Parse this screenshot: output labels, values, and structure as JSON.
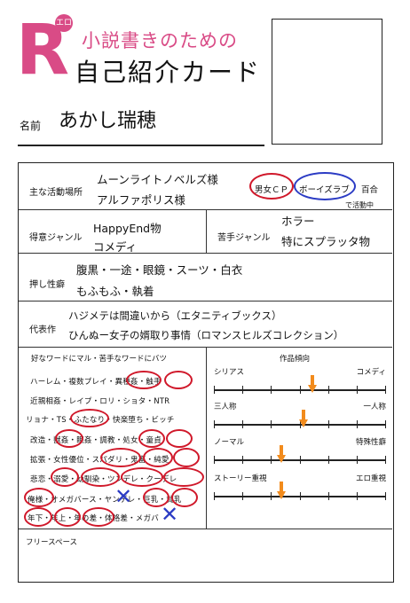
{
  "header": {
    "logo_letter": "R",
    "logo_badge": "エロ",
    "subtitle": "小説書きのための",
    "title": "自己紹介カード",
    "name_label": "名前",
    "name_value": "あかし瑞穂"
  },
  "activity": {
    "label": "主な活動場所",
    "line1": "ムーンライトノベルズ様",
    "line2": "アルファポリス様",
    "tag1": "男女ＣＰ",
    "tag2": "ボーイズラブ",
    "tag3": "百合",
    "note": "で活動中"
  },
  "genre": {
    "good_label": "得意ジャンル",
    "good_line1": "HappyEnd物",
    "good_line2": "コメディ",
    "bad_label": "苦手ジャンル",
    "bad_line1": "ホラー",
    "bad_line2": "特にスプラッタ物"
  },
  "fetish": {
    "label": "押し性癖",
    "line1": "腹黒・一途・眼鏡・スーツ・白衣",
    "line2": "もふもふ・執着"
  },
  "works": {
    "label": "代表作",
    "line1": "ハジメテは間違いから（エタニティブックス）",
    "line2": "ひんぬー女子の婿取り事情（ロマンスヒルズコレクション）"
  },
  "keywords": {
    "header": "好なワードにマル・苦手なワードにバツ",
    "rows": [
      "ハーレム・複数プレイ・異種姦・触手",
      "近親相姦・レイプ・ロリ・ショタ・NTR",
      "リョナ・TS・ふたなり・快楽堕ち・ビッチ",
      "改造・獣姦・眠姦・調教・処女・童貞",
      "拡張・女性優位・スパダリ・鬼畜・純愛",
      "悲恋・溺愛・幼馴染・ツンデレ・クーデレ",
      "俺様・オメガバース・ヤンデレ・巨乳・貧乳",
      "年下・年上・年の差・体格差・メガバ"
    ]
  },
  "tendency": {
    "header": "作品傾向",
    "scales": [
      {
        "left": "シリアス",
        "right": "コメディ",
        "value": 0.57
      },
      {
        "left": "三人称",
        "right": "一人称",
        "value": 0.52
      },
      {
        "left": "ノーマル",
        "right": "特殊性癖",
        "value": 0.39
      },
      {
        "left": "ストーリー重視",
        "right": "エロ重視",
        "value": 0.39
      }
    ]
  },
  "free": {
    "label": "フリースペース"
  },
  "colors": {
    "brand": "#d94b86",
    "circle_red": "#d0182a",
    "circle_blue": "#2b3bc4",
    "arrow": "#f28b1c"
  }
}
